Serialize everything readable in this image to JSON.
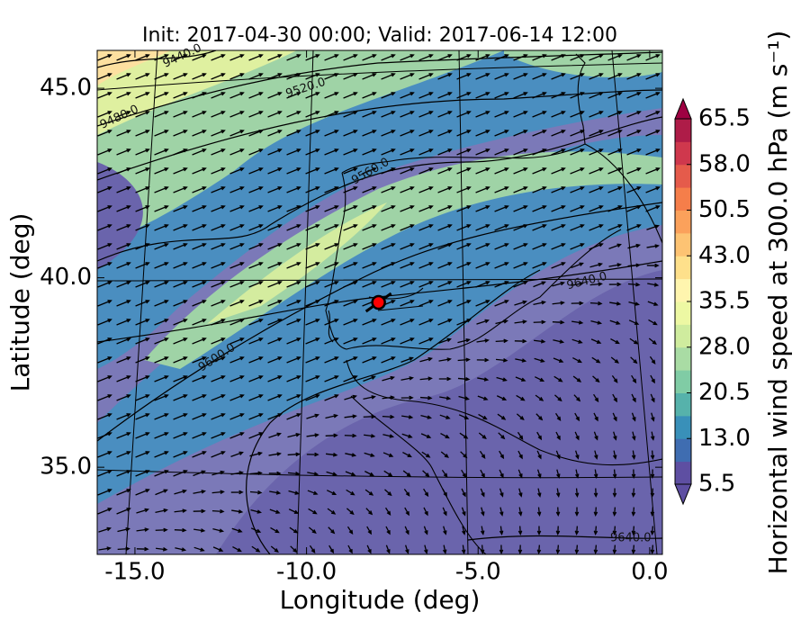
{
  "chart_data": {
    "type": "map",
    "title": "Init: 2017-04-30 00:00; Valid: 2017-06-14 12:00",
    "xlabel": "Longitude (deg)",
    "ylabel": "Latitude (deg)",
    "xlim": [
      -16.1,
      0.37
    ],
    "ylim": [
      32.7,
      46.0
    ],
    "xticks": [
      {
        "value": -15,
        "label": "-15.0"
      },
      {
        "value": -10,
        "label": "-10.0"
      },
      {
        "value": -5,
        "label": "-5.0"
      },
      {
        "value": 0,
        "label": "0.0"
      }
    ],
    "yticks": [
      {
        "value": 35,
        "label": "35.0"
      },
      {
        "value": 40,
        "label": "40.0"
      },
      {
        "value": 45,
        "label": "45.0"
      }
    ],
    "contour_labels": [
      "9440.0",
      "9480.0",
      "9520.0",
      "9560.0",
      "9600.0",
      "9640.0",
      "9640.0"
    ],
    "point": {
      "x": -7.9,
      "y": 39.35,
      "color": "#ff0000"
    },
    "colorbar": {
      "label": "Horizontal wind speed at 300.0 hPa (m s⁻¹)",
      "lim": [
        5.5,
        65.5
      ],
      "ticks": [
        5.5,
        {
          "value": 13,
          "label": "13.0"
        },
        20.5,
        {
          "value": 28,
          "label": "28.0"
        },
        35.5,
        {
          "value": 43,
          "label": "43.0"
        },
        50.5,
        {
          "value": 58,
          "label": "58.0"
        },
        65.5
      ],
      "colors": [
        "#5e4fa2",
        "#3f6db1",
        "#3990b9",
        "#56b2ab",
        "#80cca5",
        "#a9dca4",
        "#cfec9e",
        "#edf8a3",
        "#fff5ae",
        "#fee08b",
        "#fdc373",
        "#fba15b",
        "#f57e4a",
        "#e55b4b",
        "#cf384d",
        "#ae1c48"
      ],
      "under": "#5e4fa2",
      "over": "#9e0142"
    }
  }
}
